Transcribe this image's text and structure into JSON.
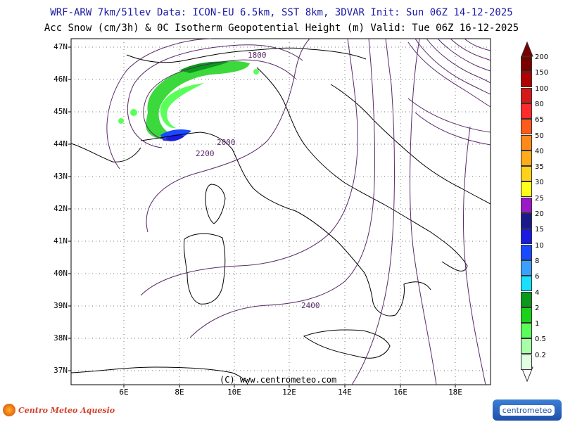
{
  "header": {
    "line1": "WRF-ARW 7km/51lev  Data: ICON-EU 6.5km, SST 8km, 3DVAR  Init: Sun 06Z 14-12-2025",
    "line2": "Acc Snow (cm/3h) & 0C Isotherm Geopotential Height (m)  Valid: Tue 06Z 16-12-2025"
  },
  "axes": {
    "lat_labels": [
      "47N",
      "46N",
      "45N",
      "44N",
      "43N",
      "42N",
      "41N",
      "40N",
      "39N",
      "38N",
      "37N"
    ],
    "lon_labels": [
      "6E",
      "8E",
      "10E",
      "12E",
      "14E",
      "16E",
      "18E"
    ]
  },
  "contour_labels": {
    "c1800": "1800",
    "c2000": "2000",
    "c2200": "2200",
    "c2400": "2400"
  },
  "legend": {
    "values": [
      "200",
      "150",
      "100",
      "80",
      "65",
      "50",
      "40",
      "35",
      "30",
      "25",
      "20",
      "15",
      "10",
      "8",
      "6",
      "4",
      "2",
      "1",
      "0.5",
      "0.2"
    ],
    "colors": [
      "#7a0000",
      "#b00000",
      "#d61818",
      "#ff2a2a",
      "#ff5a1a",
      "#ff8a1a",
      "#ffab1a",
      "#ffd21a",
      "#ffff1a",
      "#9a1ac8",
      "#1a1a8a",
      "#1a1ae0",
      "#1a4aff",
      "#3aa0ff",
      "#1ae0ff",
      "#0a9a1a",
      "#1ad21a",
      "#5aff5a",
      "#a8ffa8",
      "#e0ffe0"
    ]
  },
  "credit": "(C) www.centrometeo.com",
  "logos": {
    "left": "Centro Meteo Aquesio",
    "right": "centrometeo"
  },
  "colors": {
    "contour": "#5a2a6a",
    "coast": "#000000",
    "grid": "#555555"
  }
}
